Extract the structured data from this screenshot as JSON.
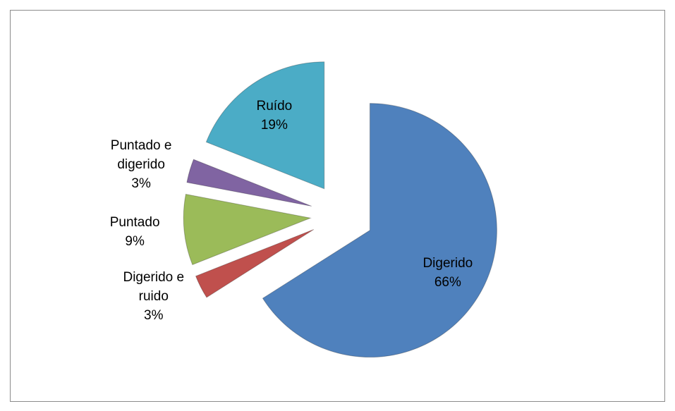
{
  "chart_data": {
    "type": "pie",
    "categories": [
      "Digerido",
      "Digerido e ruido",
      "Puntado",
      "Puntado e digerido",
      "Ruído"
    ],
    "values": [
      66,
      3,
      9,
      3,
      19
    ],
    "value_labels": [
      "66%",
      "3%",
      "9%",
      "3%",
      "19%"
    ],
    "colors": [
      "#4f81bd",
      "#c0504d",
      "#9bbb59",
      "#8064a2",
      "#4bacc6"
    ]
  }
}
